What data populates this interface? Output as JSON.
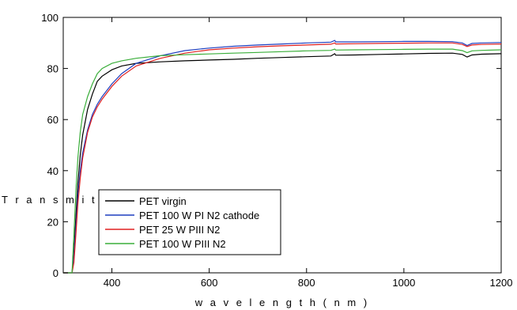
{
  "chart_data": {
    "type": "line",
    "title": "",
    "xlabel": "w a v e l e n g t h ( n m )",
    "ylabel": "T r a n s m i t t a",
    "xlim": [
      300,
      1200
    ],
    "ylim": [
      0,
      100
    ],
    "xticks": [
      400,
      600,
      800,
      1000,
      1200
    ],
    "yticks": [
      0,
      20,
      40,
      60,
      80,
      100
    ],
    "grid": false,
    "legend_position": "bottom-left",
    "series": [
      {
        "name": "PET virgin",
        "color": "#000000",
        "x": [
          300,
          310,
          318,
          322,
          326,
          330,
          335,
          340,
          350,
          360,
          370,
          380,
          400,
          420,
          450,
          500,
          550,
          600,
          650,
          700,
          750,
          800,
          850,
          858,
          860,
          900,
          950,
          1000,
          1050,
          1100,
          1120,
          1130,
          1140,
          1160,
          1200
        ],
        "y": [
          0,
          0,
          0,
          8,
          22,
          35,
          46,
          54,
          64,
          70,
          75,
          77,
          79.5,
          81,
          82,
          82.6,
          83,
          83.3,
          83.6,
          84,
          84.3,
          84.6,
          84.9,
          85.8,
          85.2,
          85.3,
          85.5,
          85.7,
          85.9,
          86,
          85.5,
          84.5,
          85.3,
          85.6,
          85.8
        ]
      },
      {
        "name": "PET 100 W PI   N2 cathode",
        "color": "#1f3fbf",
        "x": [
          300,
          310,
          318,
          322,
          326,
          330,
          335,
          340,
          350,
          360,
          370,
          380,
          400,
          420,
          450,
          500,
          550,
          600,
          650,
          700,
          750,
          800,
          850,
          858,
          860,
          900,
          950,
          1000,
          1050,
          1100,
          1120,
          1130,
          1140,
          1160,
          1200
        ],
        "y": [
          0,
          0,
          0,
          6,
          18,
          30,
          40,
          47,
          56,
          62,
          66,
          69,
          74,
          78,
          82,
          85,
          87,
          88,
          88.7,
          89.2,
          89.6,
          90,
          90.3,
          91,
          90.4,
          90.4,
          90.5,
          90.6,
          90.6,
          90.5,
          90,
          89,
          89.8,
          90,
          90.2
        ]
      },
      {
        "name": "PET   25 W PIII N2",
        "color": "#e02020",
        "x": [
          300,
          310,
          318,
          322,
          326,
          330,
          335,
          340,
          350,
          360,
          370,
          380,
          400,
          420,
          450,
          500,
          550,
          600,
          650,
          700,
          750,
          800,
          850,
          858,
          860,
          900,
          950,
          1000,
          1050,
          1100,
          1120,
          1130,
          1140,
          1160,
          1200
        ],
        "y": [
          0,
          0,
          0,
          4,
          15,
          27,
          37,
          45,
          55,
          61,
          65,
          68,
          73,
          77,
          81,
          84,
          86,
          87.3,
          88,
          88.5,
          88.9,
          89.2,
          89.5,
          90,
          89.6,
          89.7,
          89.8,
          89.9,
          90,
          90,
          89.4,
          88.6,
          89.2,
          89.4,
          89.6
        ]
      },
      {
        "name": "PET 100 W PIII N2",
        "color": "#3aae3a",
        "x": [
          300,
          310,
          318,
          322,
          326,
          330,
          335,
          340,
          350,
          360,
          370,
          380,
          400,
          420,
          450,
          500,
          550,
          600,
          650,
          700,
          750,
          800,
          850,
          858,
          860,
          900,
          950,
          1000,
          1050,
          1100,
          1120,
          1130,
          1140,
          1160,
          1200
        ],
        "y": [
          0,
          0,
          0,
          15,
          32,
          45,
          55,
          62,
          69,
          74,
          78,
          80,
          82,
          83,
          84,
          85,
          85.4,
          85.7,
          86,
          86.3,
          86.6,
          86.9,
          87.1,
          87.6,
          87.2,
          87.3,
          87.4,
          87.5,
          87.6,
          87.6,
          87,
          86.2,
          86.9,
          87.1,
          87.3
        ]
      }
    ]
  }
}
